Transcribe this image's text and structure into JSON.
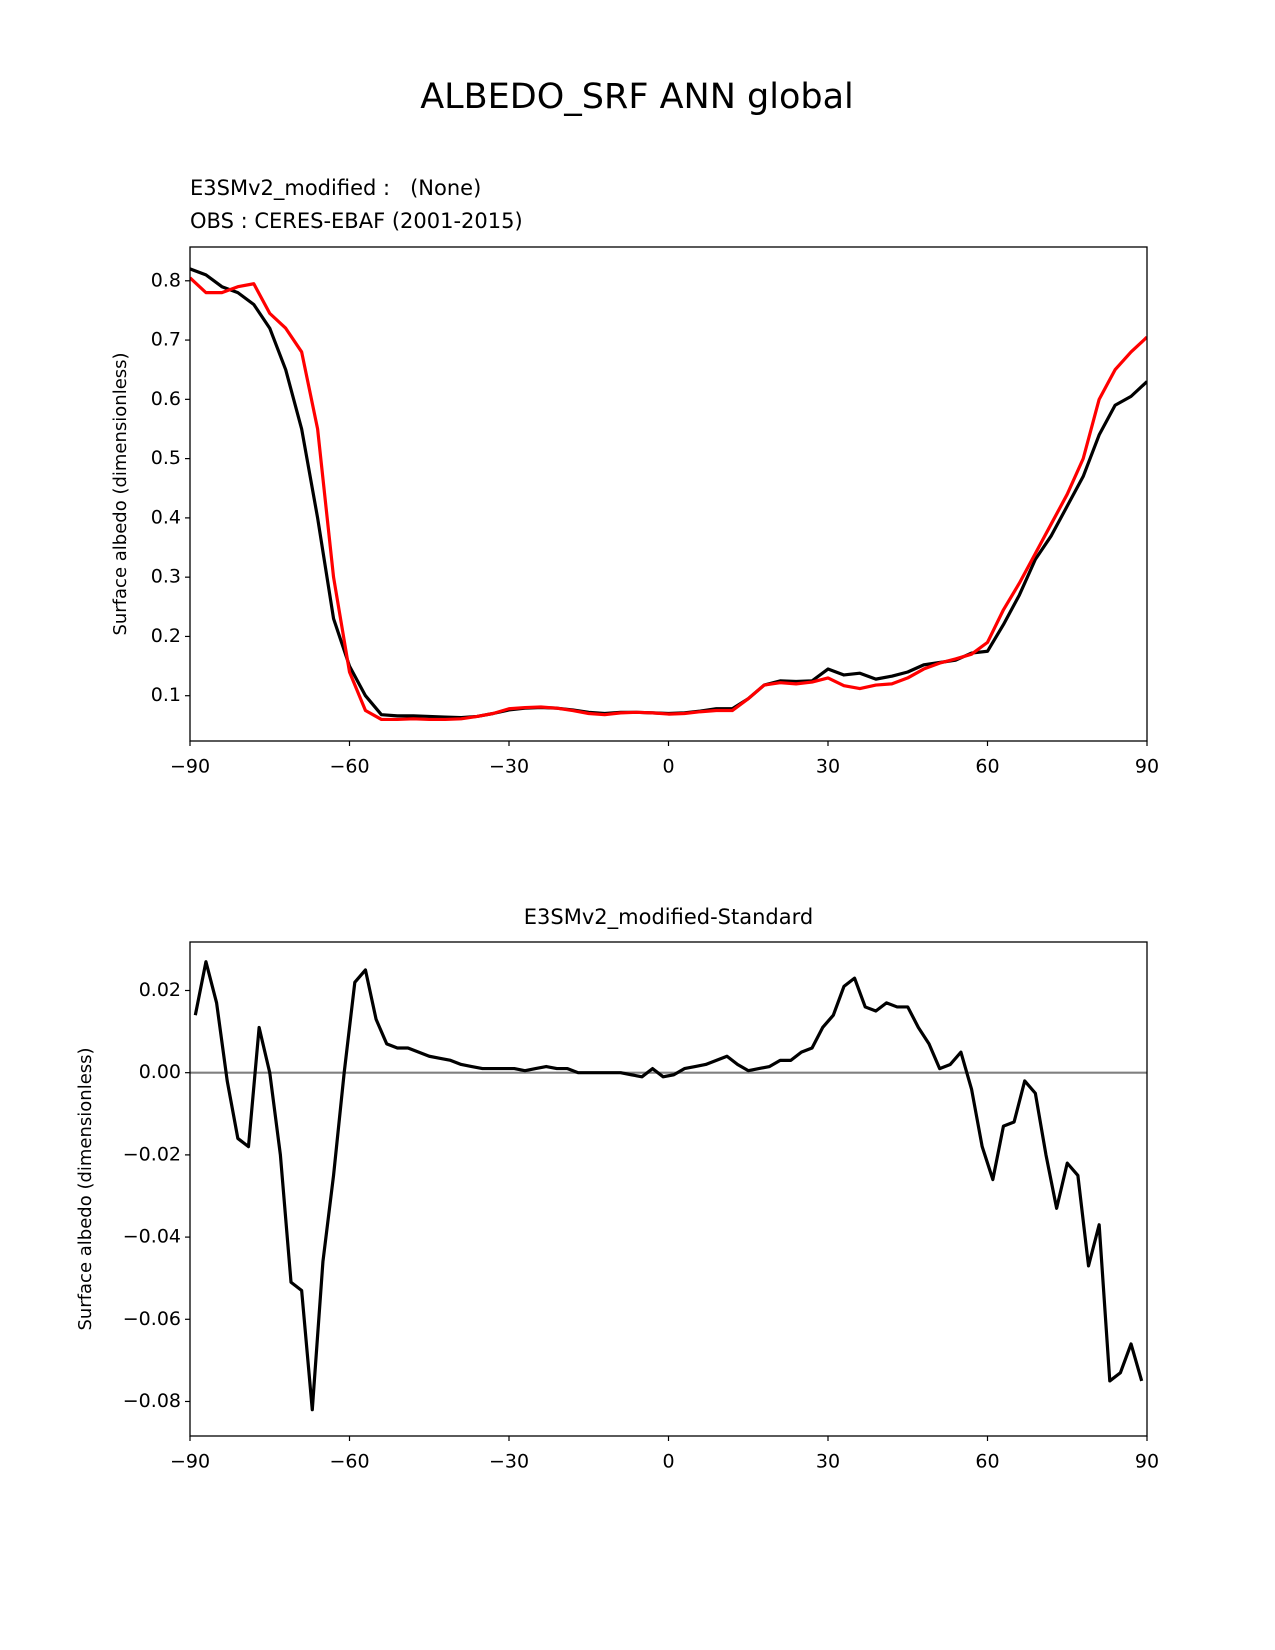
{
  "title": "ALBEDO_SRF ANN global",
  "chart_data": [
    {
      "type": "line",
      "ylabel": "Surface albedo (dimensionless)",
      "x": [
        -90,
        -87,
        -84,
        -81,
        -78,
        -75,
        -72,
        -69,
        -66,
        -63,
        -60,
        -57,
        -54,
        -51,
        -48,
        -45,
        -42,
        -39,
        -36,
        -33,
        -30,
        -27,
        -24,
        -21,
        -18,
        -15,
        -12,
        -9,
        -6,
        -3,
        0,
        3,
        6,
        9,
        12,
        15,
        18,
        21,
        24,
        27,
        30,
        33,
        36,
        39,
        42,
        45,
        48,
        51,
        54,
        57,
        60,
        63,
        66,
        69,
        72,
        75,
        78,
        81,
        84,
        87,
        90
      ],
      "series": [
        {
          "name": "E3SMv2_modified :   (None)",
          "color": "#000000",
          "values": [
            0.82,
            0.81,
            0.79,
            0.78,
            0.76,
            0.72,
            0.65,
            0.55,
            0.4,
            0.23,
            0.15,
            0.1,
            0.068,
            0.066,
            0.066,
            0.065,
            0.064,
            0.063,
            0.065,
            0.07,
            0.076,
            0.079,
            0.08,
            0.079,
            0.076,
            0.072,
            0.07,
            0.072,
            0.072,
            0.071,
            0.07,
            0.071,
            0.074,
            0.078,
            0.078,
            0.095,
            0.118,
            0.125,
            0.124,
            0.125,
            0.145,
            0.135,
            0.138,
            0.128,
            0.133,
            0.14,
            0.152,
            0.156,
            0.16,
            0.172,
            0.175,
            0.22,
            0.27,
            0.33,
            0.37,
            0.42,
            0.47,
            0.54,
            0.59,
            0.605,
            0.63
          ]
        },
        {
          "name": "OBS : CERES-EBAF (2001-2015)",
          "color": "#ff0000",
          "values": [
            0.805,
            0.78,
            0.78,
            0.79,
            0.795,
            0.745,
            0.72,
            0.68,
            0.55,
            0.3,
            0.14,
            0.075,
            0.06,
            0.06,
            0.061,
            0.06,
            0.06,
            0.061,
            0.065,
            0.07,
            0.078,
            0.08,
            0.081,
            0.079,
            0.075,
            0.07,
            0.068,
            0.071,
            0.072,
            0.071,
            0.069,
            0.07,
            0.073,
            0.075,
            0.075,
            0.095,
            0.118,
            0.122,
            0.12,
            0.123,
            0.13,
            0.117,
            0.112,
            0.118,
            0.12,
            0.13,
            0.145,
            0.155,
            0.162,
            0.17,
            0.19,
            0.245,
            0.29,
            0.34,
            0.39,
            0.44,
            0.5,
            0.6,
            0.65,
            0.68,
            0.705
          ]
        }
      ],
      "xlim": [
        -90,
        90
      ],
      "xticks": [
        {
          "value": -90,
          "label": "−90"
        },
        {
          "value": -60,
          "label": "−60"
        },
        {
          "value": -30,
          "label": "−30"
        },
        0,
        30,
        60,
        90
      ],
      "ylim": [
        0.0236,
        0.857
      ],
      "yticks": [
        0.1,
        0.2,
        0.3,
        0.4,
        0.5,
        0.6,
        0.7,
        0.8
      ]
    },
    {
      "type": "line",
      "title": "E3SMv2_modified-Standard",
      "ylabel": "Surface albedo (dimensionless)",
      "x": [
        -89,
        -87,
        -85,
        -83,
        -81,
        -79,
        -77,
        -75,
        -73,
        -71,
        -69,
        -67,
        -65,
        -63,
        -61,
        -59,
        -57,
        -55,
        -53,
        -51,
        -49,
        -47,
        -45,
        -43,
        -41,
        -39,
        -37,
        -35,
        -33,
        -31,
        -29,
        -27,
        -25,
        -23,
        -21,
        -19,
        -17,
        -15,
        -13,
        -11,
        -9,
        -7,
        -5,
        -3,
        -1,
        1,
        3,
        5,
        7,
        9,
        11,
        13,
        15,
        17,
        19,
        21,
        23,
        25,
        27,
        29,
        31,
        33,
        35,
        37,
        39,
        41,
        43,
        45,
        47,
        49,
        51,
        53,
        55,
        57,
        59,
        61,
        63,
        65,
        67,
        69,
        71,
        73,
        75,
        77,
        79,
        81,
        83,
        85,
        87,
        89
      ],
      "series": [
        {
          "color": "#000000",
          "values": [
            0.014,
            0.027,
            0.017,
            -0.002,
            -0.016,
            -0.018,
            0.011,
            0.0,
            -0.02,
            -0.051,
            -0.053,
            -0.082,
            -0.046,
            -0.025,
            0.0,
            0.022,
            0.025,
            0.013,
            0.007,
            0.006,
            0.006,
            0.005,
            0.004,
            0.0035,
            0.003,
            0.002,
            0.0015,
            0.001,
            0.001,
            0.001,
            0.001,
            0.0005,
            0.001,
            0.0015,
            0.001,
            0.001,
            0.0,
            0.0,
            0.0,
            0.0,
            0.0,
            -0.0005,
            -0.001,
            0.001,
            -0.001,
            -0.0005,
            0.001,
            0.0015,
            0.002,
            0.003,
            0.004,
            0.002,
            0.0005,
            0.001,
            0.0015,
            0.003,
            0.003,
            0.005,
            0.006,
            0.011,
            0.014,
            0.021,
            0.023,
            0.016,
            0.015,
            0.017,
            0.016,
            0.016,
            0.011,
            0.007,
            0.001,
            0.002,
            0.005,
            -0.004,
            -0.018,
            -0.026,
            -0.013,
            -0.012,
            -0.002,
            -0.005,
            -0.02,
            -0.033,
            -0.022,
            -0.025,
            -0.047,
            -0.037,
            -0.075,
            -0.073,
            -0.066,
            -0.075
          ]
        }
      ],
      "hline": 0,
      "hline_color": "#808080",
      "xlim": [
        -90,
        90
      ],
      "xticks": [
        {
          "value": -90,
          "label": "−90"
        },
        {
          "value": -60,
          "label": "−60"
        },
        {
          "value": -30,
          "label": "−30"
        },
        0,
        30,
        60,
        90
      ],
      "ylim": [
        -0.0884,
        0.0318
      ],
      "yticks": [
        {
          "value": 0.02,
          "label": "0.02"
        },
        {
          "value": 0,
          "label": "0.00"
        },
        {
          "value": -0.02,
          "label": "−0.02"
        },
        {
          "value": -0.04,
          "label": "−0.04"
        },
        {
          "value": -0.06,
          "label": "−0.06"
        },
        {
          "value": -0.08,
          "label": "−0.08"
        }
      ]
    }
  ]
}
